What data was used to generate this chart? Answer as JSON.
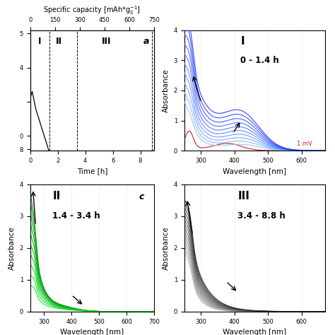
{
  "panel_a": {
    "xlabel": "Time [h]",
    "ylabel": "",
    "top_xlabel": "Specific capacity [mAh*g⁻¹_S]",
    "region_dividers": [
      1.4,
      3.4,
      8.85
    ],
    "yticks": [
      2.8,
      3.0,
      3.5,
      4.0,
      4.5
    ],
    "ytick_labels": [
      "8",
      "0",
      "",
      "4",
      "5"
    ],
    "xticks": [
      0,
      2,
      4,
      6,
      8
    ],
    "top_ticks": [
      0,
      150,
      300,
      450,
      600,
      750
    ],
    "xlim": [
      0,
      9.0
    ],
    "ylim": [
      2.78,
      4.55
    ]
  },
  "panel_b": {
    "region_label": "I",
    "time_label": "0 - 1.4 h",
    "xlabel": "Wavelength [nm]",
    "ylabel": "Absorbance",
    "xlim": [
      250,
      670
    ],
    "ylim": [
      0.0,
      4.0
    ],
    "xticks": [
      300,
      400,
      500,
      600
    ],
    "yticks": [
      0.0,
      1.0,
      2.0,
      3.0,
      4.0
    ],
    "n_curves": 10,
    "ref_label": "1 mV"
  },
  "panel_c": {
    "region_label": "II",
    "time_label": "1.4 - 3.4 h",
    "panel_label": "c",
    "xlabel": "Wavelength [nm]",
    "ylabel": "Absorbance",
    "xlim": [
      250,
      700
    ],
    "ylim": [
      0.0,
      4.0
    ],
    "xticks": [
      300,
      400,
      500,
      600,
      700
    ],
    "yticks": [
      0.0,
      1.0,
      2.0,
      3.0,
      4.0
    ],
    "n_curves": 10
  },
  "panel_d": {
    "region_label": "III",
    "time_label": "3.4 - 8.8 h",
    "xlabel": "Wavelength [nm]",
    "ylabel": "Absorbance",
    "xlim": [
      250,
      670
    ],
    "ylim": [
      0.0,
      4.0
    ],
    "xticks": [
      300,
      400,
      500,
      600
    ],
    "yticks": [
      0.0,
      1.0,
      2.0,
      3.0,
      4.0
    ],
    "n_curves": 14
  },
  "bg_color": "#ffffff",
  "grid_color": "#d0d0d0"
}
